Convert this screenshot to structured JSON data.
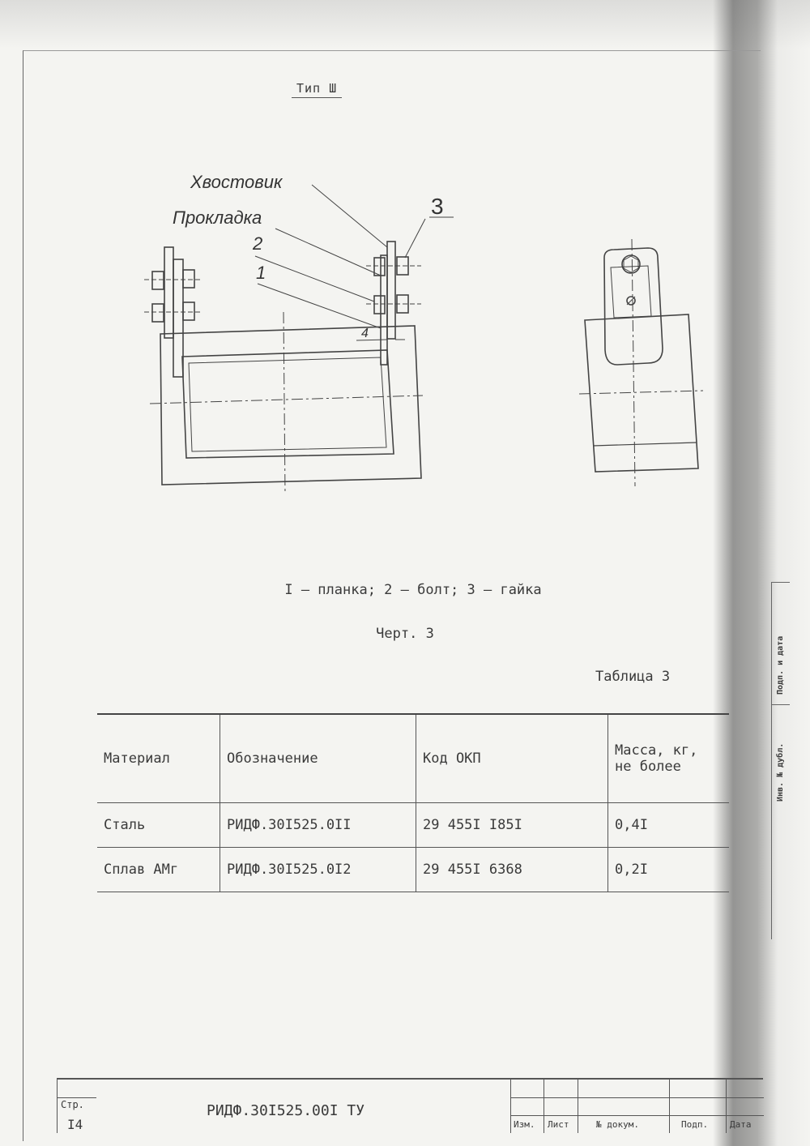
{
  "drawing": {
    "type_title": "Тип Ш",
    "label_shank": "Хвостовик",
    "label_gasket": "Прокладка",
    "callout_1": "1",
    "callout_2": "2",
    "callout_3": "3",
    "dimension_4": "4",
    "legend": "I – планка; 2 – болт; 3 – гайка",
    "chert": "Черт. 3"
  },
  "table": {
    "caption": "Таблица 3",
    "headers": [
      "Материал",
      "Обозначение",
      "Код ОКП",
      "Масса, кг, не более"
    ],
    "rows": [
      [
        "Сталь",
        "РИДФ.30I525.0II",
        "29 455I I85I",
        "0,4I"
      ],
      [
        "Сплав АМг",
        "РИДФ.30I525.0I2",
        "29 455I 6368",
        "0,2I"
      ]
    ]
  },
  "title_block": {
    "page_label": "Стр.",
    "page_number": "I4",
    "doc_code": "РИДФ.30I525.00I ТУ",
    "col_izm": "Изм.",
    "col_list": "Лист",
    "col_doc": "№ докум.",
    "col_sign": "Подп.",
    "col_date": "Дата"
  },
  "side_strip": {
    "sign_date": "Подп. и дата",
    "inv_dubl": "Инв. № дубл."
  }
}
